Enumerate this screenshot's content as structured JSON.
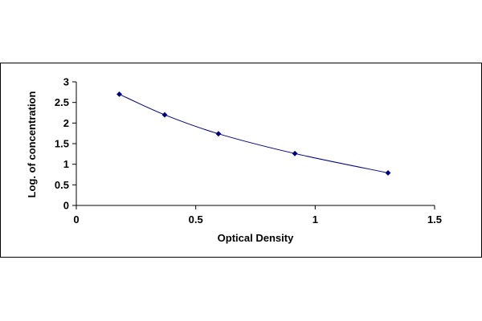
{
  "chart_data": {
    "type": "scatter",
    "title": "",
    "xlabel": "Optical Density",
    "ylabel": "Log. of concentration",
    "xlim": [
      0,
      1.5
    ],
    "ylim": [
      0,
      3
    ],
    "x_ticks": [
      0,
      0.5,
      1,
      1.5
    ],
    "x_tick_labels": [
      "0",
      "0.5",
      "1",
      "1.5"
    ],
    "y_ticks": [
      0,
      0.5,
      1,
      1.5,
      2,
      2.5,
      3
    ],
    "y_tick_labels": [
      "0",
      "0.5",
      "1",
      "1.5",
      "2",
      "2.5",
      "3"
    ],
    "grid": false,
    "legend": "none",
    "series": [
      {
        "x": [
          0.18,
          0.37,
          0.595,
          0.915,
          1.305
        ],
        "y": [
          2.7,
          2.2,
          1.74,
          1.26,
          0.79
        ],
        "marker": "diamond",
        "color": "#000080",
        "line_color": "#000080",
        "trendline": "smooth"
      }
    ]
  }
}
